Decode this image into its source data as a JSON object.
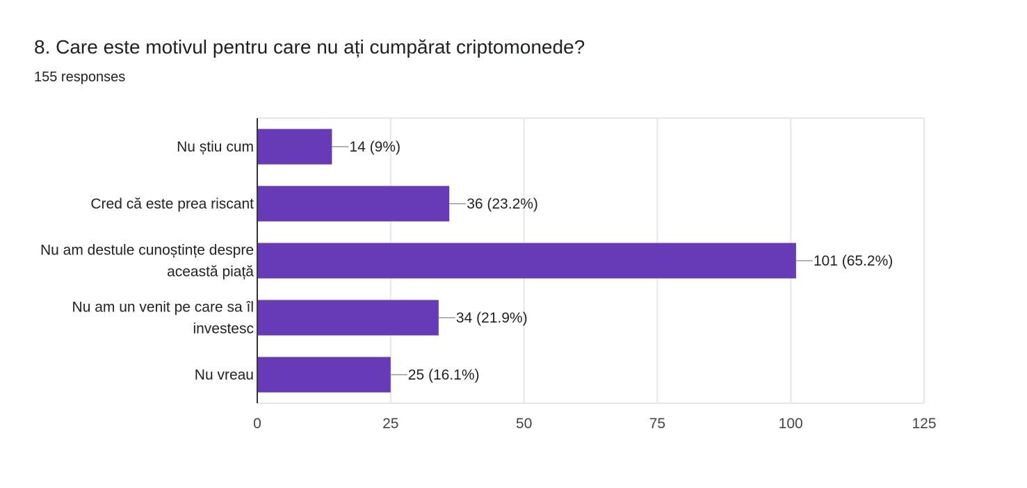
{
  "question": {
    "title": "8. Care este motivul pentru care nu ați cumpărat criptomonede?",
    "responses": "155 responses"
  },
  "colors": {
    "bar": "#673ab7",
    "grid": "#e6e6e6",
    "axis": "#333333",
    "leader": "#999999"
  },
  "chart_data": {
    "type": "bar",
    "orientation": "horizontal",
    "title": "",
    "xlabel": "",
    "ylabel": "",
    "xlim": [
      0,
      125
    ],
    "ticks": [
      0,
      25,
      50,
      75,
      100,
      125
    ],
    "grid": true,
    "categories": [
      [
        "Nu știu cum"
      ],
      [
        "Cred că este prea riscant"
      ],
      [
        "Nu am destule cunoștințe despre",
        "această piață"
      ],
      [
        "Nu am un venit pe care sa îl",
        "investesc"
      ],
      [
        "Nu vreau"
      ]
    ],
    "values": [
      14,
      36,
      101,
      34,
      25
    ],
    "labels": [
      "14 (9%)",
      "36 (23.2%)",
      "101 (65.2%)",
      "34 (21.9%)",
      "25 (16.1%)"
    ]
  }
}
